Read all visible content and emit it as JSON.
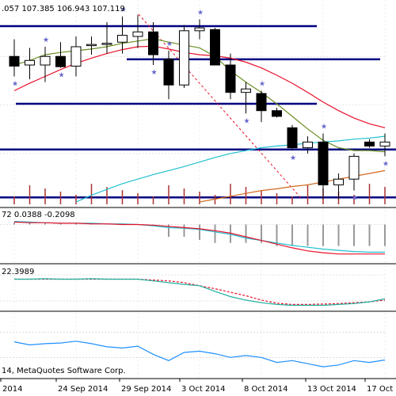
{
  "header": {
    "ohlc": ".057 107.385 106.943 107.119",
    "macd_label": "72 0.0388 -0.2098",
    "stoch_label": "22.3989",
    "copyright": "14, MetaQuotes Software Corp."
  },
  "colors": {
    "bull": "#ffffff",
    "bear": "#000000",
    "ma_fast": "#6b8e23",
    "ma_slow": "#e8102a",
    "ma_cyan": "#20c0d0",
    "ma_orange": "#d2691e",
    "levels": "#000080",
    "fractals": "#6666cc",
    "volume": "#aa3333"
  },
  "chart_data": [
    {
      "type": "candlestick",
      "title": "",
      "x_tick_labels": [
        "2014",
        "24 Sep 2014",
        "29 Sep 2014",
        "3 Oct 2014",
        "8 Oct 2014",
        "13 Oct 2014",
        "17 Oct 2014"
      ],
      "ylim": [
        104.9,
        108.3
      ],
      "candles": [
        {
          "o": 107.45,
          "h": 107.75,
          "l": 107.1,
          "c": 107.28
        },
        {
          "o": 107.3,
          "h": 107.6,
          "l": 107.05,
          "c": 107.38
        },
        {
          "o": 107.3,
          "h": 107.62,
          "l": 107.0,
          "c": 107.45
        },
        {
          "o": 107.45,
          "h": 107.7,
          "l": 107.25,
          "c": 107.27
        },
        {
          "o": 107.28,
          "h": 107.8,
          "l": 107.1,
          "c": 107.62
        },
        {
          "o": 107.65,
          "h": 107.8,
          "l": 107.48,
          "c": 107.66
        },
        {
          "o": 107.66,
          "h": 108.05,
          "l": 107.5,
          "c": 107.68
        },
        {
          "o": 107.7,
          "h": 108.15,
          "l": 107.5,
          "c": 107.82
        },
        {
          "o": 107.8,
          "h": 108.18,
          "l": 107.6,
          "c": 107.88
        },
        {
          "o": 107.88,
          "h": 108.05,
          "l": 107.3,
          "c": 107.48
        },
        {
          "o": 107.4,
          "h": 107.55,
          "l": 106.7,
          "c": 106.95
        },
        {
          "o": 106.95,
          "h": 108.0,
          "l": 106.9,
          "c": 107.9
        },
        {
          "o": 107.9,
          "h": 108.1,
          "l": 107.75,
          "c": 107.95
        },
        {
          "o": 107.92,
          "h": 107.95,
          "l": 107.3,
          "c": 107.3
        },
        {
          "o": 107.3,
          "h": 107.5,
          "l": 106.7,
          "c": 106.82
        },
        {
          "o": 106.82,
          "h": 107.0,
          "l": 106.45,
          "c": 106.88
        },
        {
          "o": 106.8,
          "h": 106.85,
          "l": 106.3,
          "c": 106.5
        },
        {
          "o": 106.5,
          "h": 106.55,
          "l": 106.38,
          "c": 106.4
        },
        {
          "o": 106.2,
          "h": 106.25,
          "l": 105.8,
          "c": 105.85
        },
        {
          "o": 105.85,
          "h": 106.05,
          "l": 105.75,
          "c": 105.95
        },
        {
          "o": 105.95,
          "h": 106.1,
          "l": 104.95,
          "c": 105.2
        },
        {
          "o": 105.2,
          "h": 105.4,
          "l": 104.95,
          "c": 105.3
        },
        {
          "o": 105.3,
          "h": 105.75,
          "l": 105.1,
          "c": 105.7
        },
        {
          "o": 105.95,
          "h": 106.0,
          "l": 105.85,
          "c": 105.88
        },
        {
          "o": 105.88,
          "h": 106.1,
          "l": 105.7,
          "c": 105.95
        }
      ],
      "ma_fast": [
        107.3,
        107.38,
        107.48,
        107.52,
        107.55,
        107.58,
        107.62,
        107.68,
        107.72,
        107.76,
        107.7,
        107.65,
        107.6,
        107.45,
        107.2,
        107.0,
        106.82,
        106.62,
        106.4,
        106.18,
        105.98,
        105.85,
        105.8,
        105.8,
        105.78
      ],
      "ma_slow": [
        106.85,
        106.98,
        107.1,
        107.22,
        107.33,
        107.42,
        107.5,
        107.57,
        107.62,
        107.63,
        107.58,
        107.52,
        107.48,
        107.46,
        107.42,
        107.35,
        107.25,
        107.12,
        106.98,
        106.82,
        106.65,
        106.5,
        106.37,
        106.27,
        106.2
      ],
      "ma_cyan": [
        null,
        null,
        null,
        null,
        104.9,
        105.02,
        105.12,
        105.22,
        105.3,
        105.38,
        105.45,
        105.52,
        105.6,
        105.68,
        105.75,
        105.8,
        105.85,
        105.88,
        105.9,
        105.93,
        105.95,
        105.97,
        106.0,
        106.02,
        106.05
      ],
      "ma_orange": [
        null,
        null,
        null,
        null,
        null,
        null,
        null,
        null,
        null,
        null,
        null,
        null,
        104.9,
        104.95,
        105.0,
        105.05,
        105.1,
        105.13,
        105.17,
        105.2,
        105.25,
        105.3,
        105.35,
        105.4,
        105.45
      ],
      "levels": [
        107.98,
        107.4,
        106.62,
        105.82,
        104.98
      ],
      "fractals_high": [
        2,
        7,
        10,
        12,
        16,
        20
      ],
      "fractals_low": [
        0,
        3,
        9,
        15,
        18,
        22,
        24
      ]
    },
    {
      "type": "line",
      "title": "",
      "ylim": [
        -0.6,
        0.2
      ],
      "series": [
        {
          "values": [
            0.05,
            0.04,
            0.03,
            0.02,
            0.02,
            0.02,
            0.01,
            0.01,
            0.0,
            -0.02,
            -0.05,
            -0.06,
            -0.08,
            -0.12,
            -0.16,
            -0.22,
            -0.26,
            -0.3,
            -0.34,
            -0.37,
            -0.4,
            -0.42,
            -0.44,
            -0.45,
            -0.45
          ]
        },
        {
          "values": [
            0.04,
            0.03,
            0.03,
            0.02,
            0.02,
            0.01,
            0.01,
            0.0,
            0.0,
            -0.01,
            -0.03,
            -0.05,
            -0.07,
            -0.1,
            -0.14,
            -0.2,
            -0.26,
            -0.32,
            -0.38,
            -0.43,
            -0.46,
            -0.48,
            -0.48,
            -0.48,
            -0.48
          ]
        }
      ],
      "histogram": [
        0.03,
        0.03,
        0.02,
        0.02,
        0.02,
        0.01,
        0.01,
        0.0,
        0.0,
        -0.01,
        -0.2,
        -0.2,
        -0.25,
        -0.3,
        -0.3,
        -0.3,
        -0.3,
        -0.35,
        -0.35,
        -0.35,
        -0.35,
        -0.35,
        -0.35,
        -0.35,
        -0.35
      ]
    },
    {
      "type": "line",
      "title": "",
      "ylim": [
        0,
        100
      ],
      "series": [
        {
          "values": [
            70,
            70,
            71,
            70,
            70,
            71,
            70,
            70,
            70,
            66,
            62,
            58,
            55,
            42,
            30,
            22,
            16,
            12,
            10,
            10,
            10,
            12,
            14,
            18,
            25
          ]
        },
        {
          "values": [
            70,
            70,
            70,
            70,
            70,
            70,
            70,
            70,
            70,
            68,
            66,
            62,
            55,
            48,
            40,
            32,
            22,
            15,
            12,
            12,
            13,
            14,
            16,
            18,
            22
          ]
        }
      ]
    },
    {
      "type": "line",
      "title": "",
      "ylim": [
        0,
        100
      ],
      "series": [
        {
          "values": [
            55,
            50,
            52,
            53,
            56,
            52,
            47,
            45,
            48,
            35,
            25,
            38,
            40,
            36,
            30,
            33,
            30,
            22,
            25,
            20,
            15,
            18,
            25,
            22,
            26
          ]
        }
      ]
    }
  ]
}
